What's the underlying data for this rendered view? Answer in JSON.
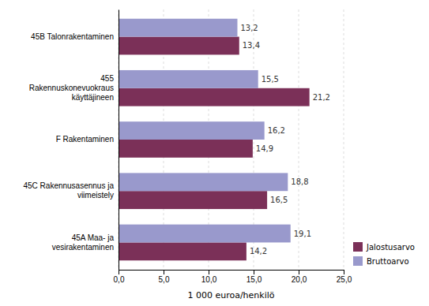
{
  "chart_data": {
    "type": "bar",
    "orientation": "horizontal",
    "categories": [
      "45B Talonrakentaminen",
      "455\nRakennuskonevuokraus\nkäyttäjineen",
      "F Rakentaminen",
      "45C Rakennusasennus ja\nviimeistely",
      "45A Maa- ja\nvesirakentaminen"
    ],
    "series": [
      {
        "name": "Jalostusarvo",
        "color": "#7B3058",
        "values": [
          13.4,
          21.2,
          14.9,
          16.5,
          14.2
        ],
        "value_labels": [
          "13,4",
          "21,2",
          "14,9",
          "16,5",
          "14,2"
        ]
      },
      {
        "name": "Bruttoarvo",
        "color": "#9999CC",
        "values": [
          13.2,
          15.5,
          16.2,
          18.8,
          19.1
        ],
        "value_labels": [
          "13,2",
          "15,5",
          "16,2",
          "18,8",
          "19,1"
        ]
      }
    ],
    "xlabel": "1 000 euroa/henkilö",
    "xlim": [
      0,
      25
    ],
    "xticks": [
      {
        "value": 0.0,
        "label": "0,0"
      },
      {
        "value": 5.0,
        "label": "5,0"
      },
      {
        "value": 10.0,
        "label": "10,0"
      },
      {
        "value": 15.0,
        "label": "15,0"
      },
      {
        "value": 20.0,
        "label": "20,0"
      },
      {
        "value": 25.0,
        "label": "25,0"
      }
    ],
    "grid": true,
    "data_labels": true,
    "legend": "lower right"
  }
}
